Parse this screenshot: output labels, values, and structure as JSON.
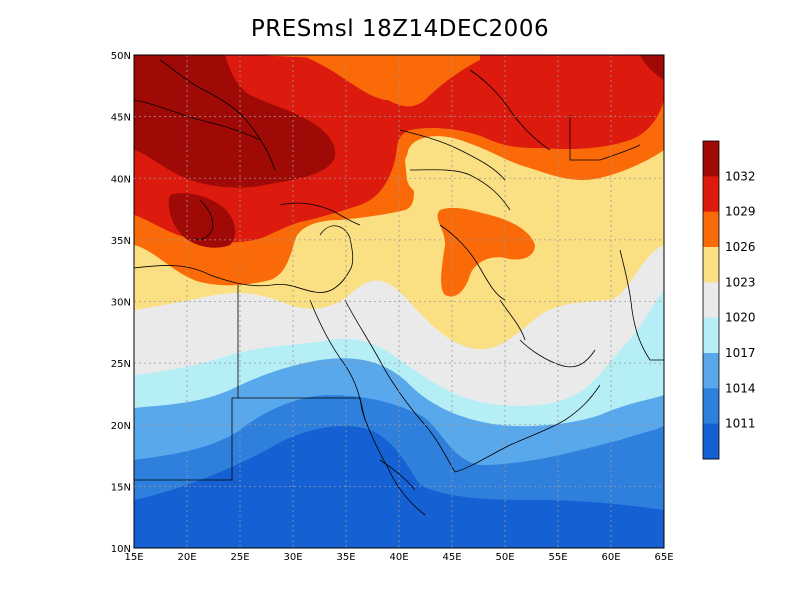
{
  "title": "PRESmsl  18Z14DEC2006",
  "map": {
    "lat_ticks": [
      "50N",
      "45N",
      "40N",
      "35N",
      "30N",
      "25N",
      "20N",
      "15N",
      "10N"
    ],
    "lon_ticks": [
      "15E",
      "20E",
      "25E",
      "30E",
      "35E",
      "40E",
      "45E",
      "50E",
      "55E",
      "60E",
      "65E"
    ],
    "lat_range": [
      10,
      50
    ],
    "lon_range": [
      15,
      65
    ],
    "grid": true
  },
  "colorbar": {
    "labels": [
      "1032",
      "1029",
      "1026",
      "1023",
      "1020",
      "1017",
      "1014",
      "1011"
    ],
    "colors_top_to_bottom": [
      "#a00a06",
      "#dc1a0e",
      "#fb6a08",
      "#fbe083",
      "#eaeaea",
      "#b6eef6",
      "#5aa8ec",
      "#2e80dc",
      "#1560d2"
    ]
  },
  "colors": {
    "darkred": "#a00a06",
    "red": "#dc1a0e",
    "orange": "#fb6a08",
    "yellow": "#fbe083",
    "gray": "#eaeaea",
    "cyan": "#b6eef6",
    "lightblue": "#5aa8ec",
    "blue": "#2e80dc",
    "darkblue": "#1560d2"
  }
}
